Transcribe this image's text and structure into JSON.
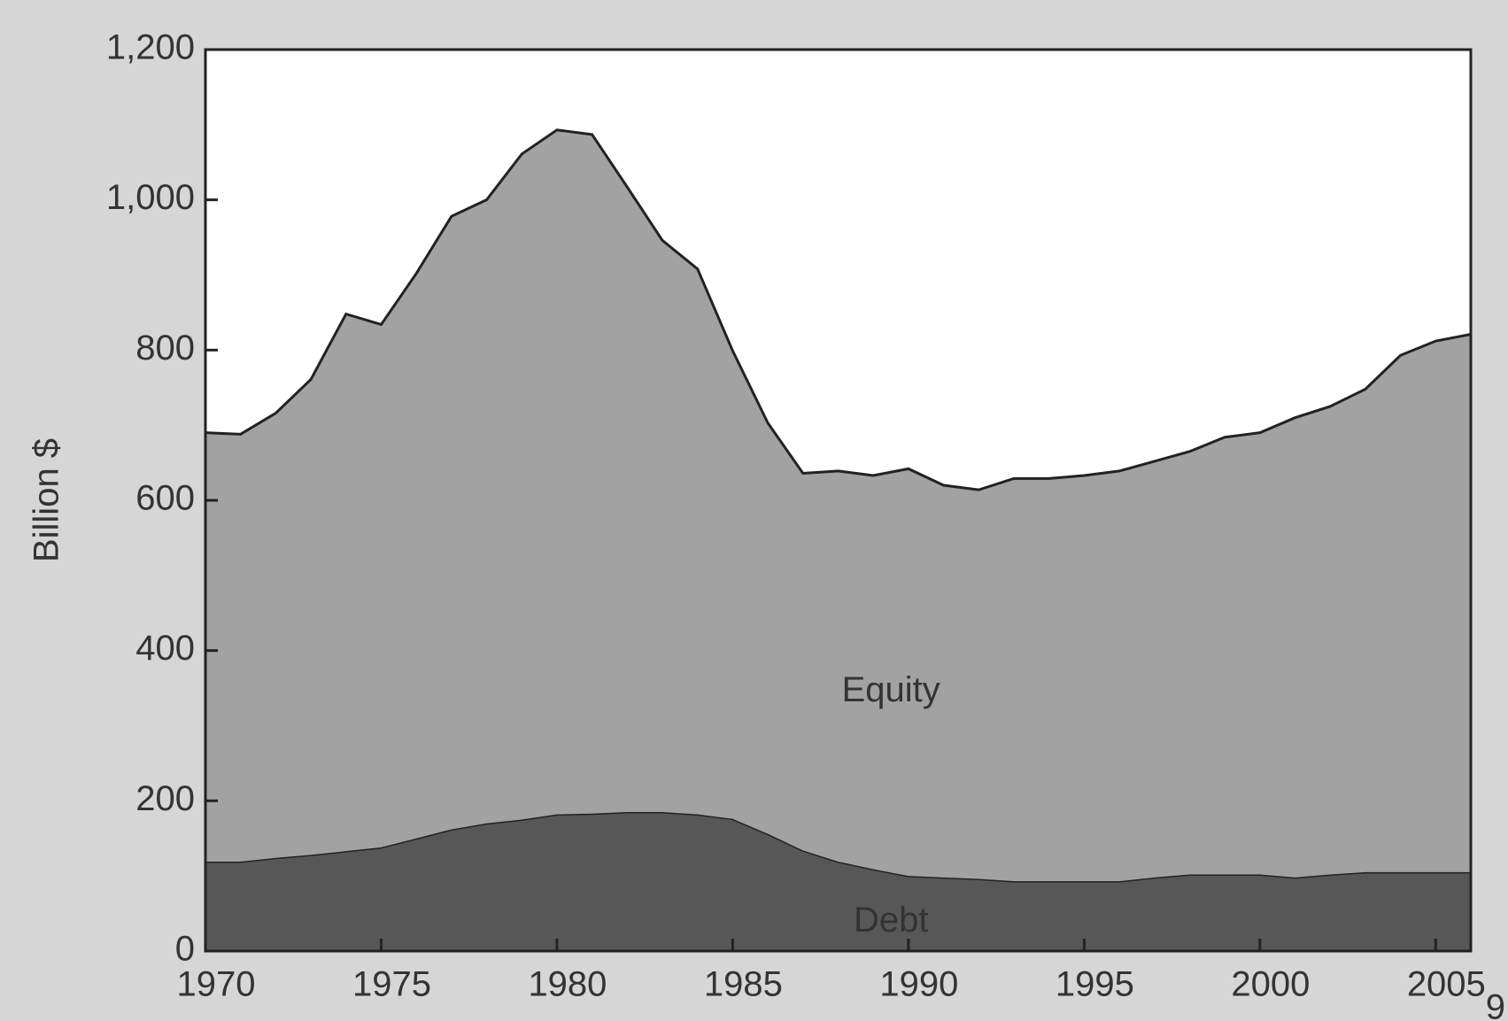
{
  "chart_data": {
    "type": "stacked_area",
    "y_label": "Billion $",
    "x": [
      1970,
      1971,
      1972,
      1973,
      1974,
      1975,
      1976,
      1977,
      1978,
      1979,
      1980,
      1981,
      1982,
      1983,
      1984,
      1985,
      1986,
      1987,
      1988,
      1989,
      1990,
      1991,
      1992,
      1993,
      1994,
      1995,
      1996,
      1997,
      1998,
      1999,
      2000,
      2001,
      2002,
      2003,
      2004,
      2005,
      2006
    ],
    "series": [
      {
        "name": "Debt",
        "color": "#575757",
        "values": [
          119,
          119,
          124,
          128,
          133,
          138,
          150,
          162,
          170,
          175,
          182,
          183,
          185,
          185,
          182,
          176,
          156,
          134,
          119,
          109,
          100,
          98,
          96,
          93,
          93,
          93,
          93,
          98,
          102,
          102,
          102,
          98,
          102,
          105,
          105,
          105,
          105
        ]
      },
      {
        "name": "Equity",
        "color": "#a2a2a2",
        "values": [
          571,
          569,
          592,
          633,
          715,
          696,
          752,
          816,
          830,
          886,
          911,
          904,
          832,
          761,
          726,
          623,
          547,
          502,
          520,
          524,
          542,
          522,
          518,
          536,
          536,
          540,
          546,
          554,
          563,
          582,
          588,
          612,
          623,
          643,
          688,
          707,
          716
        ]
      }
    ],
    "xlim": [
      1970,
      2006
    ],
    "xticks": [
      1970,
      1975,
      1980,
      1985,
      1990,
      1995,
      2000,
      2005
    ],
    "ylim": [
      0,
      1200
    ],
    "yticks": [
      0,
      200,
      400,
      600,
      800,
      {
        "value": 1000,
        "label": "1,000"
      },
      {
        "value": 1200,
        "label": "1,200"
      }
    ],
    "footnote": "9"
  }
}
